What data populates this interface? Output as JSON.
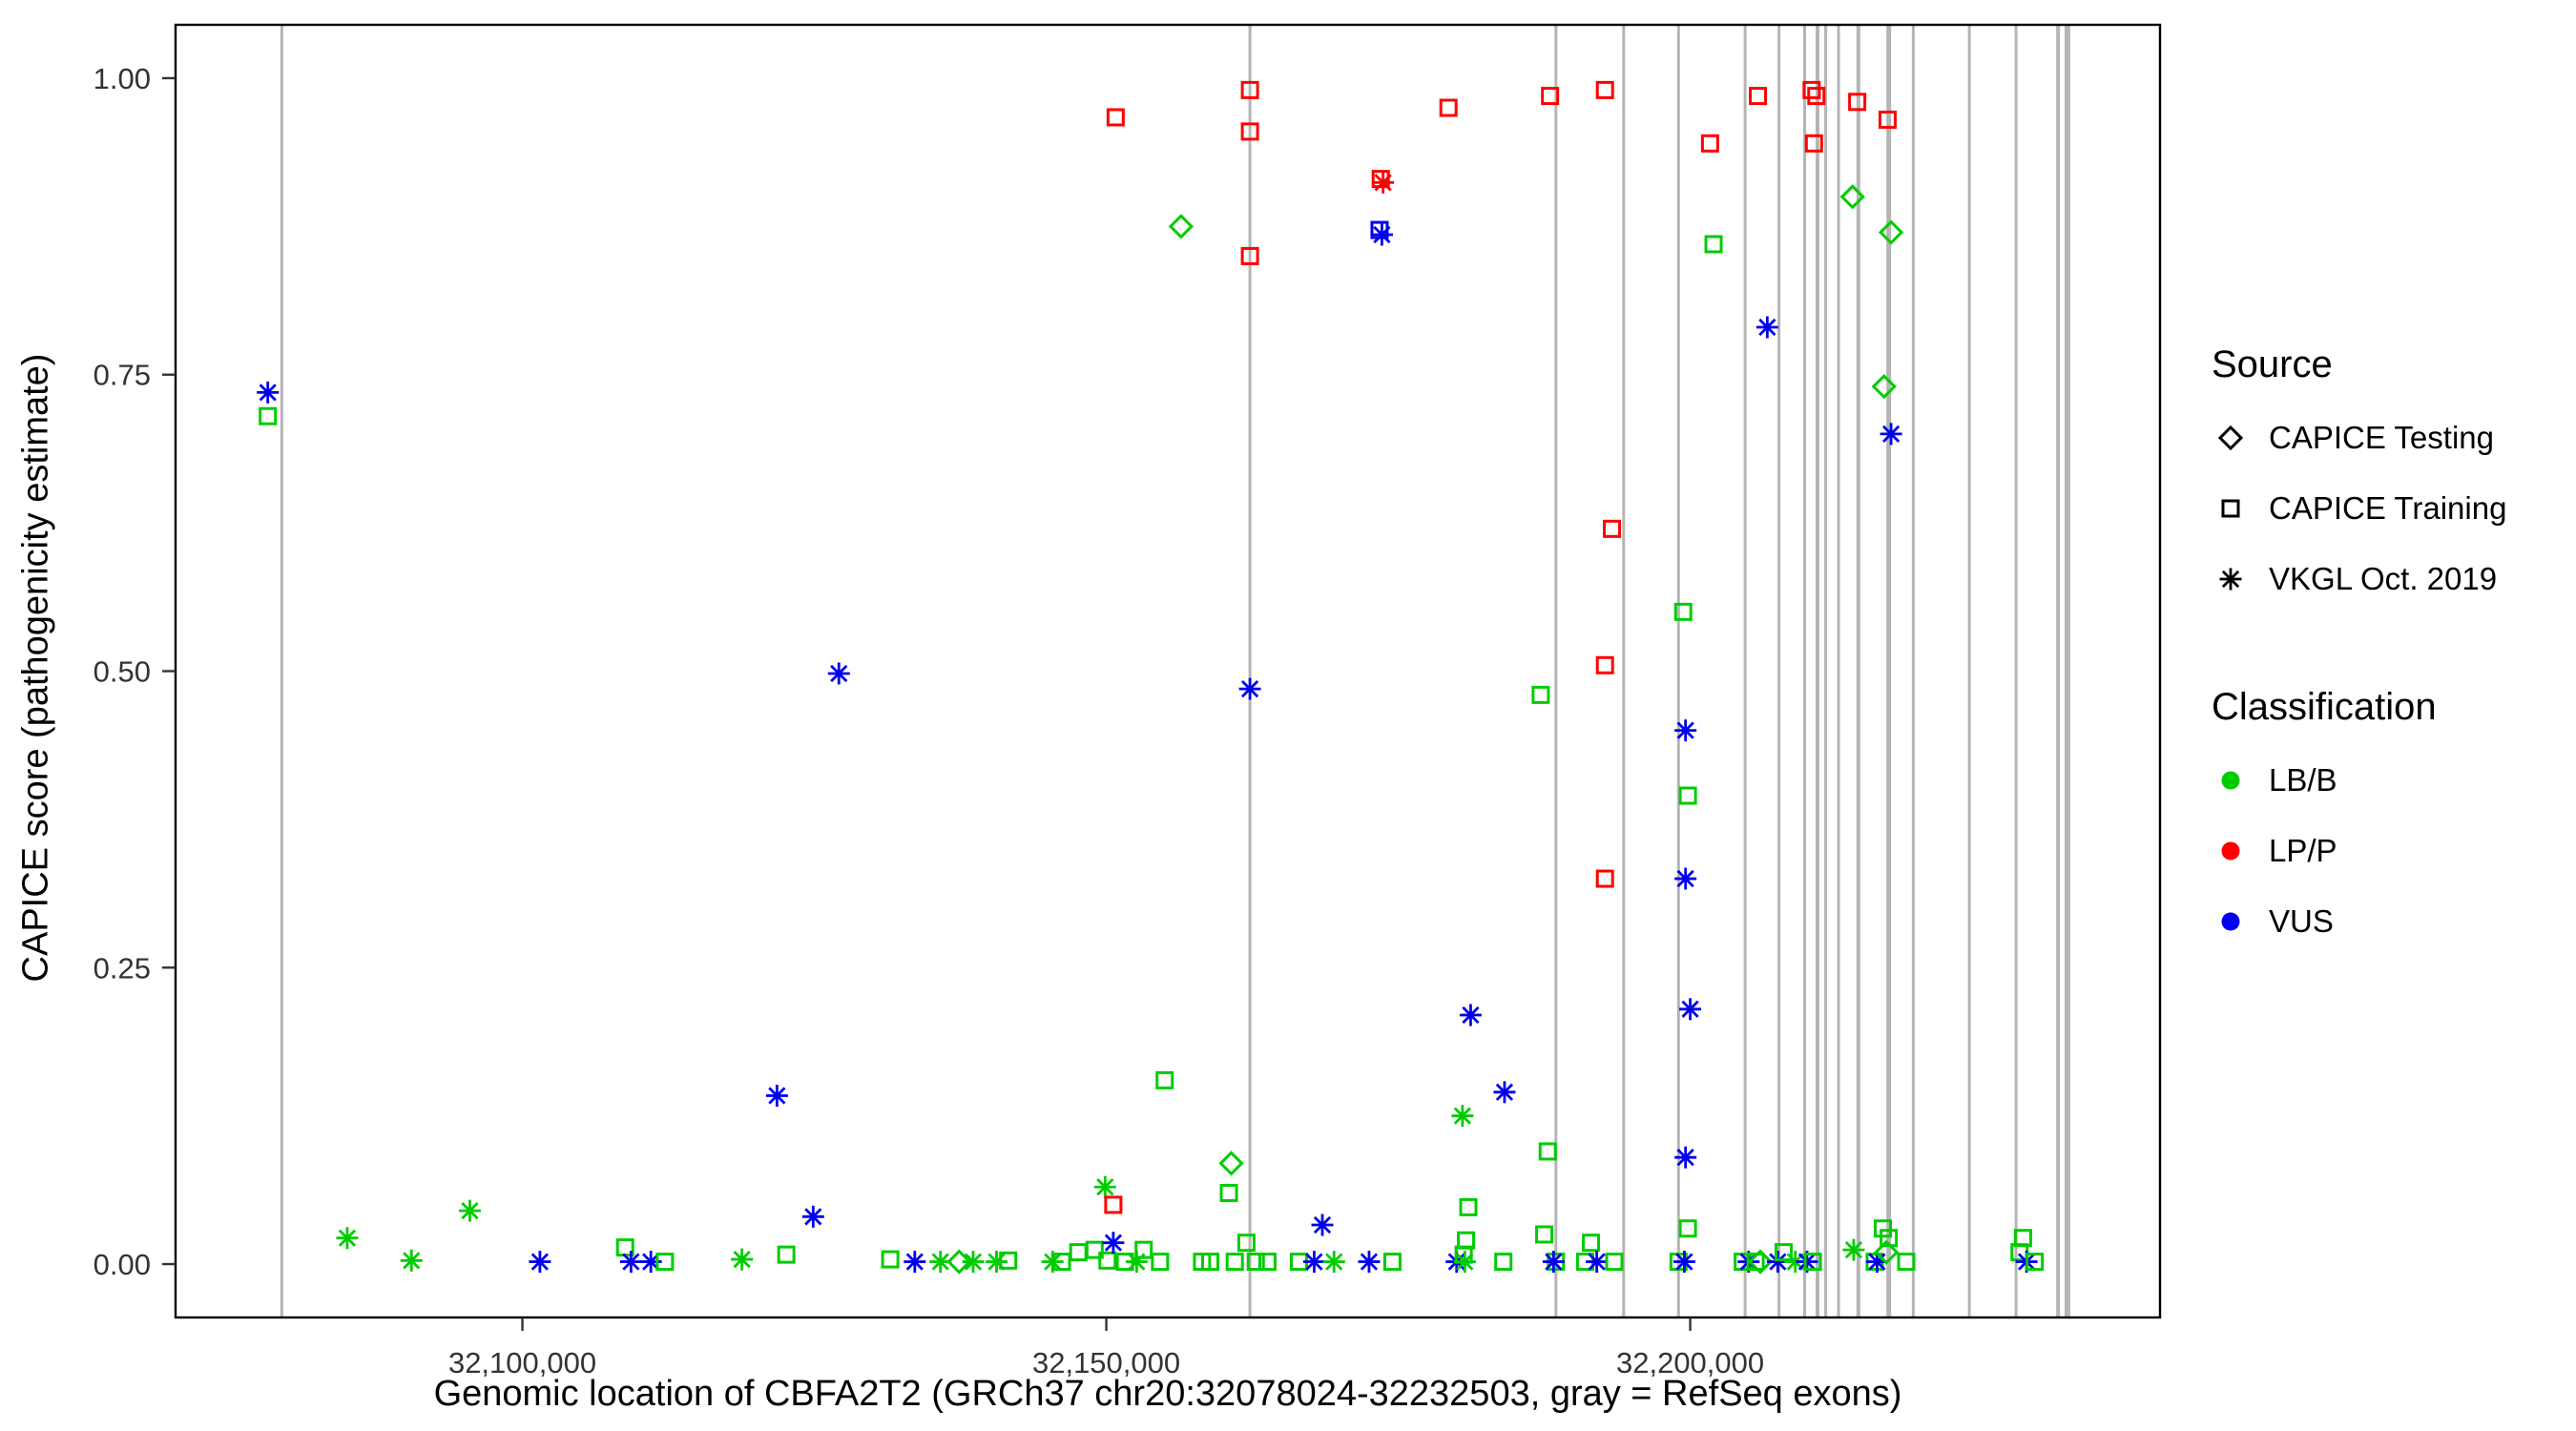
{
  "chart_data": {
    "type": "scatter",
    "title": "",
    "xlabel": "Genomic location of CBFA2T2 (GRCh37 chr20:32078024-32232503, gray = RefSeq exons)",
    "ylabel": "CAPICE score (pathogenicity estimate)",
    "xlim": [
      32070300,
      32240230
    ],
    "ylim": [
      -0.045,
      1.045
    ],
    "grid": false,
    "legend_position": "right",
    "x_ticks": [
      {
        "value": 32100000,
        "label": "32,100,000"
      },
      {
        "value": 32150000,
        "label": "32,150,000"
      },
      {
        "value": 32200000,
        "label": "32,200,000"
      }
    ],
    "y_ticks": [
      {
        "value": 0.0,
        "label": "0.00"
      },
      {
        "value": 0.25,
        "label": "0.25"
      },
      {
        "value": 0.5,
        "label": "0.50"
      },
      {
        "value": 0.75,
        "label": "0.75"
      },
      {
        "value": 1.0,
        "label": "1.00"
      }
    ],
    "exon_color": "#b5b5b5",
    "exons": [
      [
        32079400,
        3
      ],
      [
        32162300,
        3
      ],
      [
        32188500,
        3
      ],
      [
        32194300,
        3
      ],
      [
        32199000,
        3
      ],
      [
        32204700,
        3
      ],
      [
        32207600,
        3
      ],
      [
        32209800,
        3
      ],
      [
        32210900,
        4
      ],
      [
        32211600,
        3
      ],
      [
        32212700,
        3
      ],
      [
        32214400,
        4
      ],
      [
        32217000,
        5
      ],
      [
        32219100,
        3
      ],
      [
        32223900,
        3
      ],
      [
        32227900,
        3
      ],
      [
        32231500,
        4
      ],
      [
        32232300,
        6
      ]
    ],
    "classification_colors": {
      "LB/B": "#00cc00",
      "LP/P": "#ff0000",
      "VUS": "#0000ee"
    },
    "source_codes": {
      "T": "CAPICE Testing",
      "R": "CAPICE Training",
      "V": "VKGL Oct. 2019"
    },
    "class_codes": {
      "B": "LB/B",
      "P": "LP/P",
      "U": "VUS"
    },
    "marker_by_source": {
      "CAPICE Testing": "diamond",
      "CAPICE Training": "square",
      "VKGL Oct. 2019": "asterisk"
    },
    "point_format": [
      "x_genomic_position",
      "capice_score",
      "source_code",
      "class_code"
    ],
    "points": [
      [
        32078200,
        0.735,
        "V",
        "U"
      ],
      [
        32078200,
        0.715,
        "R",
        "B"
      ],
      [
        32085000,
        0.022,
        "V",
        "B"
      ],
      [
        32090500,
        0.003,
        "V",
        "B"
      ],
      [
        32095500,
        0.045,
        "V",
        "B"
      ],
      [
        32101500,
        0.002,
        "V",
        "U"
      ],
      [
        32108800,
        0.014,
        "R",
        "B"
      ],
      [
        32109300,
        0.002,
        "V",
        "U"
      ],
      [
        32111000,
        0.002,
        "V",
        "U"
      ],
      [
        32112200,
        0.002,
        "R",
        "B"
      ],
      [
        32118800,
        0.004,
        "V",
        "B"
      ],
      [
        32121800,
        0.142,
        "V",
        "U"
      ],
      [
        32122600,
        0.008,
        "R",
        "B"
      ],
      [
        32124900,
        0.04,
        "V",
        "U"
      ],
      [
        32127100,
        0.498,
        "V",
        "U"
      ],
      [
        32131500,
        0.004,
        "R",
        "B"
      ],
      [
        32133600,
        0.002,
        "V",
        "U"
      ],
      [
        32135800,
        0.002,
        "V",
        "B"
      ],
      [
        32137400,
        0.002,
        "T",
        "B"
      ],
      [
        32138600,
        0.002,
        "V",
        "B"
      ],
      [
        32140600,
        0.002,
        "V",
        "B"
      ],
      [
        32141600,
        0.003,
        "R",
        "B"
      ],
      [
        32145400,
        0.002,
        "V",
        "B"
      ],
      [
        32146200,
        0.002,
        "R",
        "B"
      ],
      [
        32147600,
        0.01,
        "R",
        "B"
      ],
      [
        32149000,
        0.012,
        "R",
        "B"
      ],
      [
        32149900,
        0.065,
        "V",
        "B"
      ],
      [
        32150100,
        0.003,
        "R",
        "B"
      ],
      [
        32150600,
        0.018,
        "V",
        "U"
      ],
      [
        32150800,
        0.967,
        "R",
        "P"
      ],
      [
        32150600,
        0.05,
        "R",
        "P"
      ],
      [
        32151600,
        0.002,
        "R",
        "B"
      ],
      [
        32152600,
        0.002,
        "V",
        "B"
      ],
      [
        32153200,
        0.012,
        "R",
        "B"
      ],
      [
        32154600,
        0.002,
        "R",
        "B"
      ],
      [
        32155000,
        0.155,
        "R",
        "B"
      ],
      [
        32156400,
        0.875,
        "T",
        "B"
      ],
      [
        32158200,
        0.002,
        "R",
        "B"
      ],
      [
        32158900,
        0.002,
        "R",
        "B"
      ],
      [
        32160700,
        0.085,
        "T",
        "B"
      ],
      [
        32160500,
        0.06,
        "R",
        "B"
      ],
      [
        32161000,
        0.002,
        "R",
        "B"
      ],
      [
        32162000,
        0.018,
        "R",
        "B"
      ],
      [
        32162300,
        0.99,
        "R",
        "P"
      ],
      [
        32162300,
        0.955,
        "R",
        "P"
      ],
      [
        32162300,
        0.85,
        "R",
        "P"
      ],
      [
        32162300,
        0.485,
        "V",
        "U"
      ],
      [
        32162800,
        0.002,
        "R",
        "B"
      ],
      [
        32163800,
        0.002,
        "R",
        "B"
      ],
      [
        32166500,
        0.002,
        "R",
        "B"
      ],
      [
        32167800,
        0.002,
        "V",
        "U"
      ],
      [
        32168500,
        0.033,
        "V",
        "U"
      ],
      [
        32169500,
        0.002,
        "V",
        "B"
      ],
      [
        32172500,
        0.002,
        "V",
        "U"
      ],
      [
        32173500,
        0.915,
        "R",
        "P"
      ],
      [
        32173700,
        0.912,
        "V",
        "P"
      ],
      [
        32173600,
        0.868,
        "V",
        "U"
      ],
      [
        32173400,
        0.872,
        "R",
        "U"
      ],
      [
        32174500,
        0.002,
        "R",
        "B"
      ],
      [
        32179300,
        0.975,
        "R",
        "P"
      ],
      [
        32180000,
        0.002,
        "V",
        "U"
      ],
      [
        32180500,
        0.125,
        "V",
        "B"
      ],
      [
        32180600,
        0.008,
        "R",
        "B"
      ],
      [
        32180800,
        0.02,
        "R",
        "B"
      ],
      [
        32181000,
        0.048,
        "R",
        "B"
      ],
      [
        32181200,
        0.21,
        "V",
        "U"
      ],
      [
        32180700,
        0.002,
        "V",
        "B"
      ],
      [
        32184000,
        0.002,
        "R",
        "B"
      ],
      [
        32184100,
        0.145,
        "V",
        "U"
      ],
      [
        32187200,
        0.48,
        "R",
        "B"
      ],
      [
        32187500,
        0.025,
        "R",
        "B"
      ],
      [
        32187800,
        0.095,
        "R",
        "B"
      ],
      [
        32188000,
        0.985,
        "R",
        "P"
      ],
      [
        32188500,
        0.002,
        "R",
        "B"
      ],
      [
        32188300,
        0.002,
        "V",
        "U"
      ],
      [
        32191000,
        0.002,
        "R",
        "B"
      ],
      [
        32191500,
        0.018,
        "R",
        "B"
      ],
      [
        32192000,
        0.002,
        "V",
        "U"
      ],
      [
        32192700,
        0.99,
        "R",
        "P"
      ],
      [
        32193300,
        0.62,
        "R",
        "P"
      ],
      [
        32192700,
        0.505,
        "R",
        "P"
      ],
      [
        32192700,
        0.325,
        "R",
        "P"
      ],
      [
        32193500,
        0.002,
        "R",
        "B"
      ],
      [
        32199000,
        0.002,
        "R",
        "B"
      ],
      [
        32199400,
        0.55,
        "R",
        "B"
      ],
      [
        32199500,
        0.002,
        "V",
        "U"
      ],
      [
        32199600,
        0.45,
        "V",
        "U"
      ],
      [
        32199600,
        0.325,
        "V",
        "U"
      ],
      [
        32199600,
        0.09,
        "V",
        "U"
      ],
      [
        32199800,
        0.395,
        "R",
        "B"
      ],
      [
        32199800,
        0.03,
        "R",
        "B"
      ],
      [
        32200000,
        0.215,
        "V",
        "U"
      ],
      [
        32201700,
        0.945,
        "R",
        "P"
      ],
      [
        32202000,
        0.86,
        "R",
        "B"
      ],
      [
        32204500,
        0.002,
        "R",
        "B"
      ],
      [
        32205000,
        0.002,
        "V",
        "U"
      ],
      [
        32205600,
        0.002,
        "R",
        "B"
      ],
      [
        32205800,
        0.985,
        "R",
        "P"
      ],
      [
        32206000,
        0.002,
        "T",
        "B"
      ],
      [
        32206600,
        0.79,
        "V",
        "U"
      ],
      [
        32207500,
        0.002,
        "V",
        "U"
      ],
      [
        32208000,
        0.01,
        "R",
        "B"
      ],
      [
        32209000,
        0.002,
        "V",
        "B"
      ],
      [
        32210000,
        0.002,
        "V",
        "U"
      ],
      [
        32210400,
        0.99,
        "R",
        "P"
      ],
      [
        32210800,
        0.985,
        "R",
        "P"
      ],
      [
        32210600,
        0.945,
        "R",
        "P"
      ],
      [
        32210500,
        0.002,
        "R",
        "B"
      ],
      [
        32214300,
        0.98,
        "R",
        "P"
      ],
      [
        32213900,
        0.9,
        "T",
        "B"
      ],
      [
        32214000,
        0.012,
        "V",
        "B"
      ],
      [
        32215800,
        0.002,
        "R",
        "B"
      ],
      [
        32216000,
        0.002,
        "V",
        "U"
      ],
      [
        32216500,
        0.03,
        "R",
        "B"
      ],
      [
        32216600,
        0.74,
        "T",
        "B"
      ],
      [
        32216800,
        0.01,
        "T",
        "B"
      ],
      [
        32216900,
        0.965,
        "R",
        "P"
      ],
      [
        32217000,
        0.022,
        "R",
        "B"
      ],
      [
        32217200,
        0.87,
        "T",
        "B"
      ],
      [
        32217200,
        0.7,
        "V",
        "U"
      ],
      [
        32218500,
        0.002,
        "R",
        "B"
      ],
      [
        32228200,
        0.01,
        "R",
        "B"
      ],
      [
        32228500,
        0.022,
        "R",
        "B"
      ],
      [
        32228800,
        0.002,
        "V",
        "U"
      ],
      [
        32229500,
        0.002,
        "R",
        "B"
      ]
    ]
  },
  "axes": {
    "x_title": "Genomic location of CBFA2T2 (GRCh37 chr20:32078024-32232503, gray = RefSeq exons)",
    "y_title": "CAPICE score (pathogenicity estimate)"
  },
  "legend": {
    "source": {
      "title": "Source",
      "items": [
        {
          "label": "CAPICE Testing",
          "marker": "diamond"
        },
        {
          "label": "CAPICE Training",
          "marker": "square"
        },
        {
          "label": "VKGL Oct. 2019",
          "marker": "asterisk"
        }
      ]
    },
    "classification": {
      "title": "Classification",
      "items": [
        {
          "label": "LB/B",
          "color": "#00cc00"
        },
        {
          "label": "LP/P",
          "color": "#ff0000"
        },
        {
          "label": "VUS",
          "color": "#0000ee"
        }
      ]
    }
  }
}
